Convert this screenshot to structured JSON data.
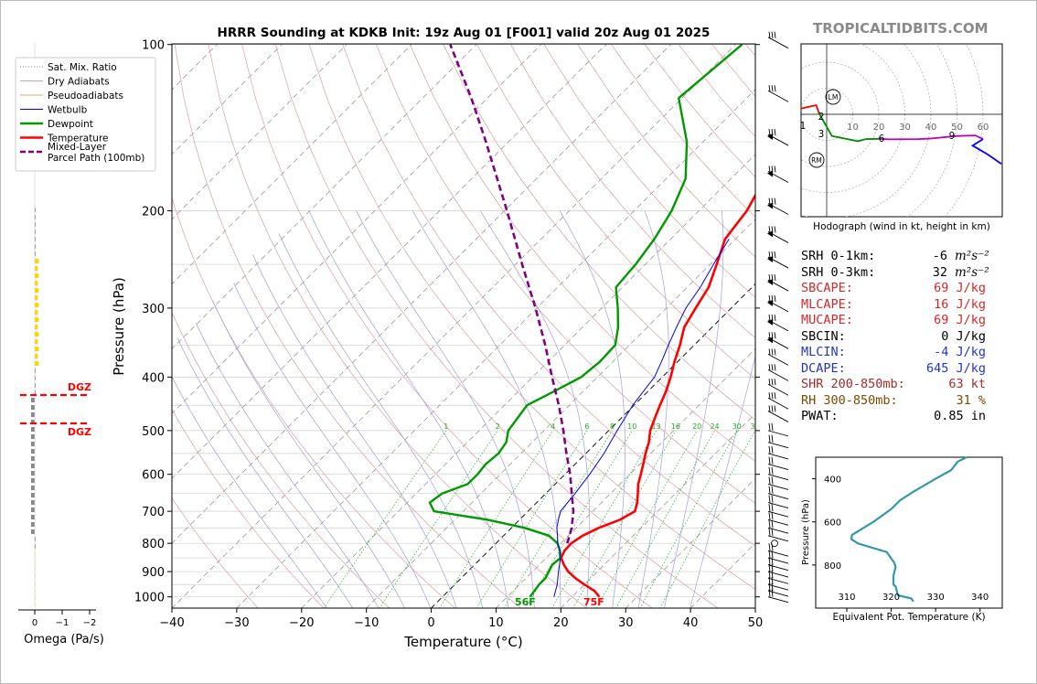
{
  "brand": "TROPICALTIDBITS.COM",
  "colors": {
    "temperature": "#ff0000",
    "dewpoint": "#009900",
    "wetbulb": "#0000ee",
    "parcel": "#800080",
    "dry_adiabat": "#d8a0a0",
    "moist_adiabat": "#a0a0d8",
    "mixing_ratio": "#22aa22",
    "isotherm": "#999999",
    "hodo_low": "#ff0000",
    "hodo_mid": "#008800",
    "hodo_upper": "#bb00bb",
    "hodo_top": "#0000ff",
    "theta_e": "#3399aa",
    "dgz": "#ff0000"
  },
  "chart_data": [
    {
      "type": "skewt",
      "title": "HRRR Sounding at KDKB Init: 19z Aug 01 [F001] valid 20z Aug 01 2025",
      "xlabel": "Temperature (°C)",
      "ylabel": "Pressure (hPa)",
      "xlim": [
        -40,
        50
      ],
      "ylim": [
        1050,
        100
      ],
      "y_scale": "log",
      "x_ticks": [
        "−40",
        "−30",
        "−20",
        "−10",
        "0",
        "10",
        "20",
        "30",
        "40",
        "50"
      ],
      "y_ticks": [
        "100",
        "200",
        "300",
        "400",
        "500",
        "600",
        "700",
        "800",
        "900",
        "1000"
      ],
      "legend_position": "top-left outside",
      "legend": [
        "Sat. Mix. Ratio",
        "Dry Adiabats",
        "Pseudoadiabats",
        "Wetbulb",
        "Dewpoint",
        "Temperature",
        "Mixed-Layer\nParcel Path (100mb)"
      ],
      "mixing_ratio_labels": [
        "1",
        "2",
        "4",
        "6",
        "8",
        "10",
        "13",
        "16",
        "20",
        "24",
        "30",
        "36"
      ],
      "surface_labels": {
        "temperature": "75F",
        "dewpoint": "56F"
      },
      "series": [
        {
          "name": "Temperature",
          "points": [
            [
              1000,
              24.2
            ],
            [
              975,
              22.5
            ],
            [
              950,
              20.0
            ],
            [
              925,
              17.6
            ],
            [
              900,
              15.5
            ],
            [
              875,
              13.8
            ],
            [
              850,
              12.3
            ],
            [
              825,
              11.7
            ],
            [
              800,
              11.6
            ],
            [
              775,
              12.2
            ],
            [
              750,
              13.5
            ],
            [
              725,
              15.5
            ],
            [
              700,
              16.5
            ],
            [
              675,
              15.5
            ],
            [
              650,
              14.2
            ],
            [
              625,
              12.8
            ],
            [
              600,
              11.7
            ],
            [
              575,
              10.5
            ],
            [
              550,
              9.2
            ],
            [
              525,
              8.0
            ],
            [
              500,
              6.4
            ],
            [
              475,
              5.2
            ],
            [
              450,
              4.0
            ],
            [
              425,
              2.8
            ],
            [
              400,
              1.3
            ],
            [
              375,
              -0.5
            ],
            [
              350,
              -2.2
            ],
            [
              325,
              -4.3
            ],
            [
              300,
              -5.5
            ],
            [
              275,
              -6.7
            ],
            [
              250,
              -9.0
            ],
            [
              225,
              -11.6
            ],
            [
              200,
              -12.6
            ],
            [
              175,
              -14.8
            ],
            [
              150,
              -18.0
            ],
            [
              125,
              -20.9
            ],
            [
              100,
              -24.0
            ]
          ]
        },
        {
          "name": "Dewpoint",
          "points": [
            [
              1000,
              13.5
            ],
            [
              950,
              13.0
            ],
            [
              925,
              13.0
            ],
            [
              900,
              12.5
            ],
            [
              875,
              12.0
            ],
            [
              850,
              12.2
            ],
            [
              825,
              11.0
            ],
            [
              800,
              9.5
            ],
            [
              775,
              7.0
            ],
            [
              750,
              2.0
            ],
            [
              725,
              -5.0
            ],
            [
              700,
              -14.5
            ],
            [
              675,
              -16.5
            ],
            [
              650,
              -16.0
            ],
            [
              625,
              -13.5
            ],
            [
              600,
              -13.5
            ],
            [
              575,
              -13.8
            ],
            [
              550,
              -13.5
            ],
            [
              525,
              -14.0
            ],
            [
              500,
              -15.5
            ],
            [
              450,
              -16.5
            ],
            [
              425,
              -14.5
            ],
            [
              400,
              -12.5
            ],
            [
              375,
              -12.0
            ],
            [
              350,
              -12.2
            ],
            [
              325,
              -14.5
            ],
            [
              300,
              -17.5
            ],
            [
              275,
              -21.0
            ],
            [
              250,
              -21.5
            ],
            [
              225,
              -22.5
            ],
            [
              200,
              -24.2
            ],
            [
              175,
              -27.0
            ],
            [
              150,
              -32.5
            ],
            [
              125,
              -40.5
            ],
            [
              100,
              -39.0
            ]
          ]
        },
        {
          "name": "Wetbulb",
          "points": [
            [
              1000,
              17.2
            ],
            [
              975,
              16.5
            ],
            [
              950,
              15.8
            ],
            [
              900,
              14.0
            ],
            [
              850,
              12.2
            ],
            [
              825,
              11.0
            ],
            [
              800,
              9.5
            ],
            [
              775,
              8.3
            ],
            [
              750,
              7.0
            ],
            [
              725,
              6.0
            ],
            [
              700,
              5.0
            ],
            [
              650,
              4.5
            ],
            [
              600,
              3.8
            ],
            [
              550,
              2.8
            ],
            [
              500,
              1.3
            ],
            [
              450,
              -0.2
            ],
            [
              400,
              -1.2
            ],
            [
              375,
              -2.5
            ],
            [
              350,
              -4.0
            ],
            [
              325,
              -5.5
            ],
            [
              300,
              -7.0
            ],
            [
              275,
              -8.0
            ],
            [
              250,
              -9.5
            ],
            [
              225,
              -11.0
            ]
          ]
        },
        {
          "name": "Mixed-Layer Parcel Path (100mb)",
          "points": [
            [
              800,
              11.0
            ],
            [
              750,
              9.3
            ],
            [
              700,
              7.0
            ],
            [
              650,
              4.0
            ],
            [
              600,
              0.8
            ],
            [
              550,
              -3.0
            ],
            [
              500,
              -7.0
            ],
            [
              450,
              -11.6
            ],
            [
              400,
              -17.0
            ],
            [
              350,
              -23.0
            ],
            [
              300,
              -30.2
            ],
            [
              250,
              -39.0
            ],
            [
              200,
              -49.6
            ],
            [
              150,
              -63.5
            ],
            [
              125,
              -72.5
            ],
            [
              100,
              -84.0
            ]
          ]
        }
      ]
    },
    {
      "type": "line",
      "title": "Omega (Pa/s)",
      "xlabel": "Omega (Pa/s)",
      "x_ticks": [
        "0",
        "−1",
        "−2"
      ],
      "dgz_labels": [
        "DGZ",
        "DGZ"
      ]
    },
    {
      "type": "line",
      "title": "Hodograph (wind in kt, height in km)",
      "ring_labels": [
        "10",
        "20",
        "30",
        "40",
        "50",
        "60"
      ],
      "marker_labels": [
        "LM",
        "RM"
      ],
      "height_labels": [
        "1",
        "2",
        "3",
        "6",
        "9"
      ],
      "x": [
        -13,
        -4,
        -3,
        2,
        12,
        15,
        20,
        24,
        35,
        40,
        50,
        57,
        60,
        56,
        62,
        67
      ],
      "y": [
        1.5,
        3.5,
        0.5,
        -8.3,
        -10.3,
        -9.5,
        -9.4,
        -9.6,
        -9.5,
        -9.3,
        -8.3,
        -8.1,
        -9.5,
        -12,
        -15.5,
        -19
      ]
    },
    {
      "type": "line",
      "xlabel": "Equivalent Pot. Temperature (K)",
      "ylabel": "Pressure (hPa)",
      "xlim": [
        303,
        345
      ],
      "ylim": [
        1000,
        300
      ],
      "x_ticks": [
        "310",
        "320",
        "330",
        "340"
      ],
      "y_ticks": [
        "400",
        "600",
        "800"
      ],
      "x": [
        325,
        324.5,
        321.5,
        321,
        320.5,
        320.5,
        321,
        320.7,
        320,
        319,
        312.5,
        311,
        311.2,
        316,
        320,
        322,
        325,
        330,
        333.5,
        335,
        337
      ],
      "y": [
        970,
        955,
        940,
        900,
        890,
        850,
        810,
        790,
        770,
        740,
        700,
        680,
        660,
        600,
        540,
        500,
        460,
        400,
        360,
        320,
        300
      ]
    }
  ],
  "stats": [
    {
      "label": "SRH 0-1km:",
      "value": "-6",
      "unit": "m²s⁻²",
      "color": "#000000"
    },
    {
      "label": "SRH 0-3km:",
      "value": "32",
      "unit": "m²s⁻²",
      "color": "#000000"
    },
    {
      "label": "SBCAPE:",
      "value": "69 J/kg",
      "unit": "",
      "color": "#d62728"
    },
    {
      "label": "MLCAPE:",
      "value": "16 J/kg",
      "unit": "",
      "color": "#d62728"
    },
    {
      "label": "MUCAPE:",
      "value": "69 J/kg",
      "unit": "",
      "color": "#d62728"
    },
    {
      "label": "SBCIN:",
      "value": "0 J/kg",
      "unit": "",
      "color": "#000000"
    },
    {
      "label": "MLCIN:",
      "value": "-4 J/kg",
      "unit": "",
      "color": "#2233cc"
    },
    {
      "label": "DCAPE:",
      "value": "645 J/kg",
      "unit": "",
      "color": "#2233cc"
    },
    {
      "label": "SHR 200-850mb:",
      "value": "63 kt",
      "unit": "",
      "color": "#a52a2a"
    },
    {
      "label": "RH 300-850mb:",
      "value": "31 %",
      "unit": "",
      "color": "#7a4a00"
    },
    {
      "label": "PWAT:",
      "value": "0.85 in",
      "unit": "",
      "color": "#000000"
    }
  ]
}
